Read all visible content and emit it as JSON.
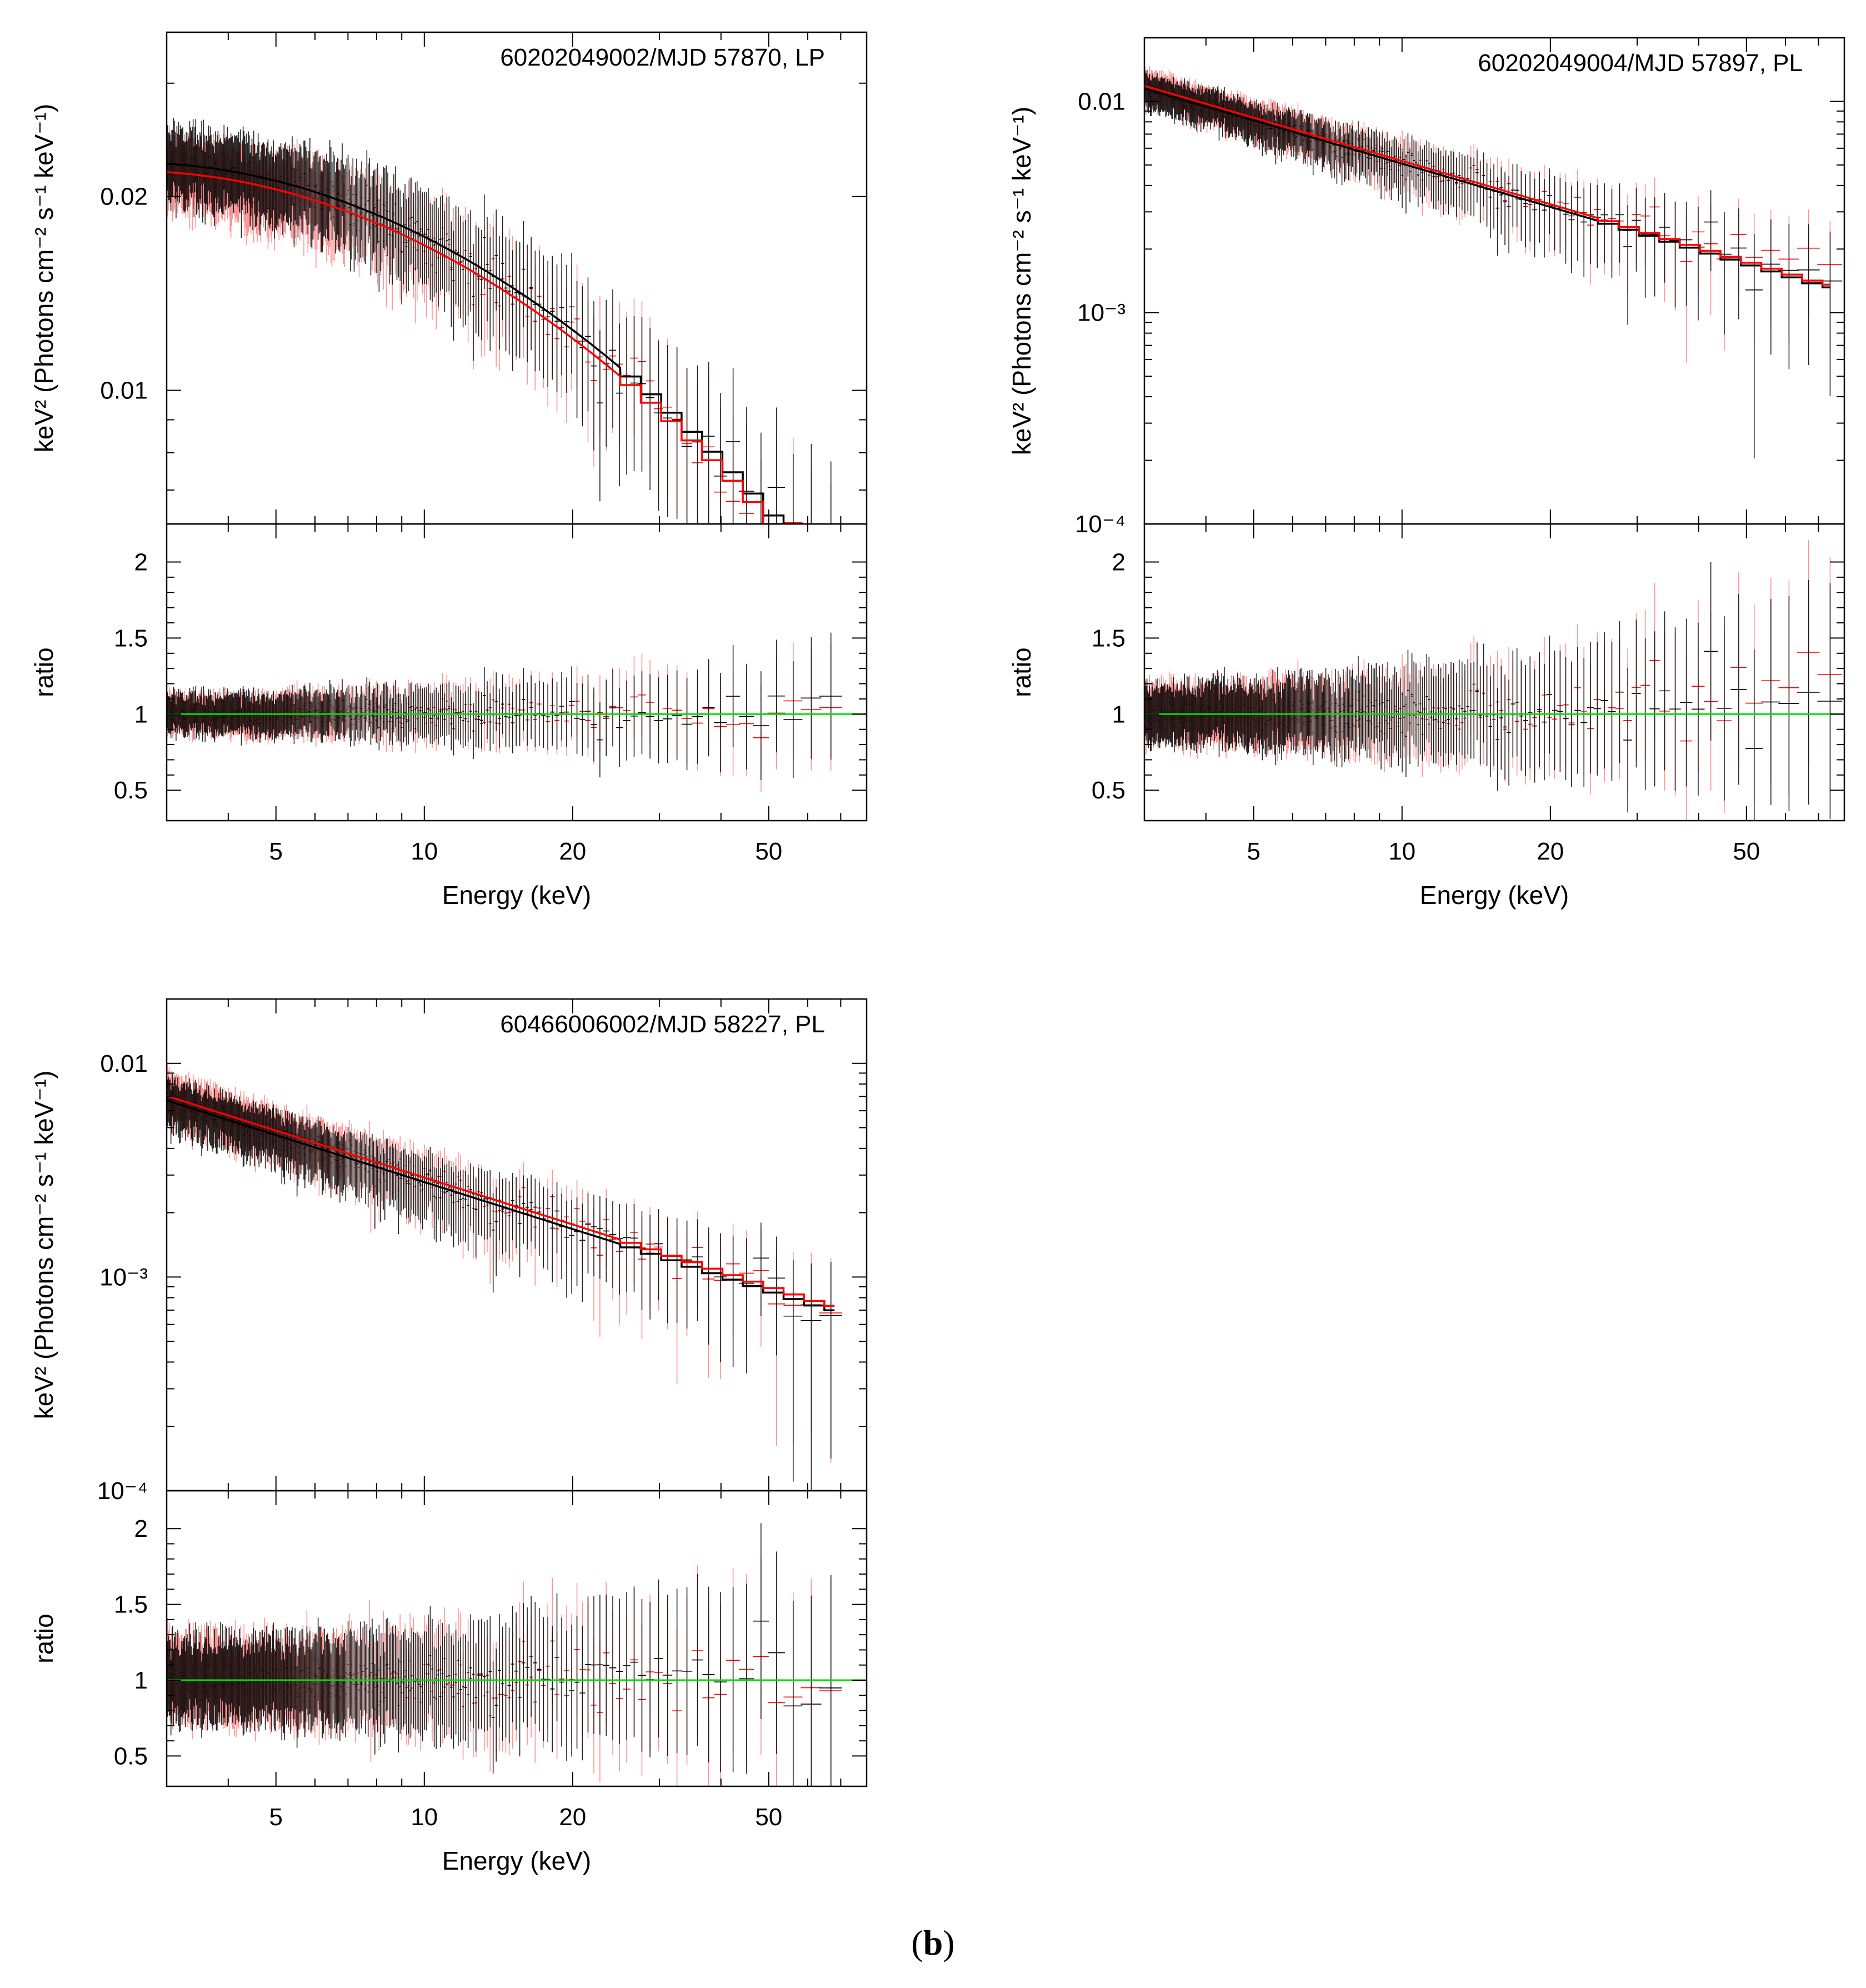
{
  "caption": {
    "open": "(",
    "letter": "b",
    "close": ")"
  },
  "colors": {
    "series_1": "#000000",
    "series_2": "#ff0000",
    "model_line": "#00e000",
    "errbar_2": "#ff8080"
  },
  "chart_data": [
    {
      "type": "scatter",
      "annotation": "60202049002/MJD 57870, LP",
      "xlabel": "Energy (keV)",
      "ylabel_top": "keV² (Photons cm⁻² s⁻¹ keV⁻¹)",
      "ylabel_bottom": "ratio",
      "xscale": "log",
      "xlim": [
        3,
        79
      ],
      "top": {
        "yscale": "log",
        "ylim": [
          0.0062,
          0.036
        ],
        "yticks": [
          {
            "v": 0.01,
            "label": "0.01"
          },
          {
            "v": 0.02,
            "label": "0.02"
          }
        ]
      },
      "bottom": {
        "ylim": [
          0.3,
          2.25
        ],
        "yticks": [
          0.5,
          1,
          1.5,
          2
        ],
        "reference_line": 1
      },
      "xticks": [
        5,
        10,
        20,
        50
      ],
      "model": {
        "kind": "logparabola",
        "norm_at_3keV": 0.0225,
        "alpha_term": 0.05,
        "beta_term": 0.32,
        "fpma_factor": 1.0,
        "fpmb_factor": 0.97
      },
      "model_step_end_keV": 68,
      "data_end_keV": 68,
      "scatter": {
        "low": 0.12,
        "high": 0.45
      }
    },
    {
      "type": "scatter",
      "annotation": "60202049004/MJD 57897, PL",
      "xlabel": "Energy (keV)",
      "ylabel_top": "keV² (Photons cm⁻² s⁻¹ keV⁻¹)",
      "ylabel_bottom": "ratio",
      "xscale": "log",
      "xlim": [
        3,
        79
      ],
      "top": {
        "yscale": "log",
        "ylim": [
          0.0001,
          0.02
        ],
        "yticks": [
          {
            "v": 0.0001,
            "label": "10⁻⁴"
          },
          {
            "v": 0.001,
            "label": "10⁻³"
          },
          {
            "v": 0.01,
            "label": "0.01"
          }
        ]
      },
      "bottom": {
        "ylim": [
          0.3,
          2.25
        ],
        "yticks": [
          0.5,
          1,
          1.5,
          2
        ],
        "reference_line": 1
      },
      "xticks": [
        5,
        10,
        20,
        50
      ],
      "model": {
        "kind": "powerlaw",
        "norm_at_3keV": 0.0115,
        "slope": -0.68,
        "fpma_factor": 1.0,
        "fpmb_factor": 1.03
      },
      "model_step_end_keV": 74,
      "data_end_keV": 74,
      "scatter": {
        "low": 0.18,
        "high": 0.8
      }
    },
    {
      "type": "scatter",
      "annotation": "60466006002/MJD 58227, PL",
      "xlabel": "Energy (keV)",
      "ylabel_top": "keV² (Photons cm⁻² s⁻¹ keV⁻¹)",
      "ylabel_bottom": "ratio",
      "xscale": "log",
      "xlim": [
        3,
        79
      ],
      "top": {
        "yscale": "log",
        "ylim": [
          0.0001,
          0.02
        ],
        "yticks": [
          {
            "v": 0.0001,
            "label": "10⁻⁴"
          },
          {
            "v": 0.001,
            "label": "10⁻³"
          },
          {
            "v": 0.01,
            "label": "0.01"
          }
        ]
      },
      "bottom": {
        "ylim": [
          0.3,
          2.25
        ],
        "yticks": [
          0.5,
          1,
          1.5,
          2
        ],
        "reference_line": 1
      },
      "xticks": [
        5,
        10,
        20,
        50
      ],
      "model": {
        "kind": "powerlaw",
        "norm_at_3keV": 0.0067,
        "slope": -0.73,
        "fpma_factor": 1.0,
        "fpmb_factor": 1.05
      },
      "model_step_end_keV": 68,
      "data_end_keV": 68,
      "scatter": {
        "low": 0.25,
        "high": 0.8
      }
    }
  ]
}
